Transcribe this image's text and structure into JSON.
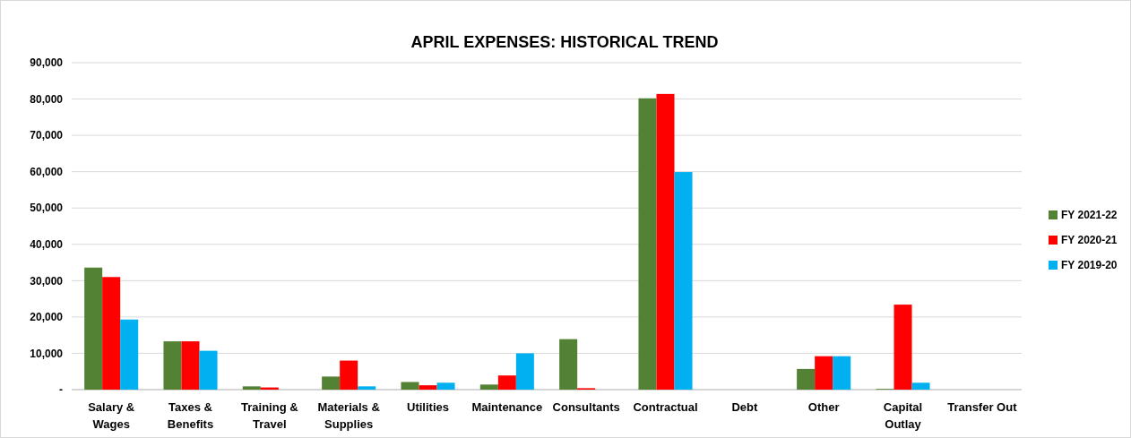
{
  "chart_data": {
    "type": "bar",
    "title": "APRIL EXPENSES: HISTORICAL TREND",
    "categories": [
      "Salary & Wages",
      "Taxes & Benefits",
      "Training & Travel",
      "Materials & Supplies",
      "Utilities",
      "Maintenance",
      "Consultants",
      "Contractual",
      "Debt",
      "Other",
      "Capital Outlay",
      "Transfer Out"
    ],
    "series": [
      {
        "name": "FY 2021-22",
        "color": "#548235",
        "values": [
          33600,
          13300,
          900,
          3600,
          2100,
          1400,
          13900,
          80200,
          0,
          5700,
          200,
          0
        ]
      },
      {
        "name": "FY 2020-21",
        "color": "#ff0000",
        "values": [
          31000,
          13300,
          600,
          8000,
          1200,
          3900,
          400,
          81400,
          0,
          9200,
          23400,
          0
        ]
      },
      {
        "name": "FY 2019-20",
        "color": "#00b0f0",
        "values": [
          19300,
          10700,
          0,
          900,
          1900,
          10000,
          0,
          59900,
          0,
          9200,
          1900,
          0
        ]
      }
    ],
    "ylim": [
      0,
      90000
    ],
    "yticks": [
      {
        "value": 0,
        "label": "-"
      },
      {
        "value": 10000,
        "label": "10,000"
      },
      {
        "value": 20000,
        "label": "20,000"
      },
      {
        "value": 30000,
        "label": "30,000"
      },
      {
        "value": 40000,
        "label": "40,000"
      },
      {
        "value": 50000,
        "label": "50,000"
      },
      {
        "value": 60000,
        "label": "60,000"
      },
      {
        "value": 70000,
        "label": "70,000"
      },
      {
        "value": 80000,
        "label": "80,000"
      },
      {
        "value": 90000,
        "label": "90,000"
      }
    ],
    "grid": "y",
    "legend": "right"
  }
}
